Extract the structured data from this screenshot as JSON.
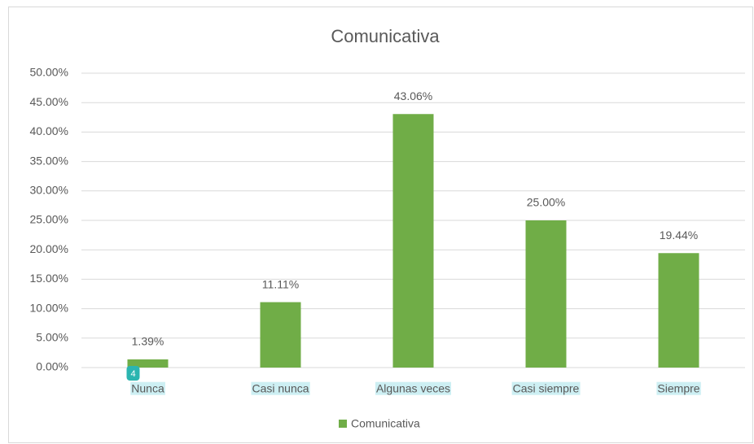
{
  "chart_data": {
    "type": "bar",
    "title": "Comunicativa",
    "categories": [
      "Nunca",
      "Casi nunca",
      "Algunas veces",
      "Casi siempre",
      "Siempre"
    ],
    "series": [
      {
        "name": "Comunicativa",
        "color": "#70ad47",
        "values": [
          1.39,
          11.11,
          43.06,
          25.0,
          19.44
        ],
        "value_labels": [
          "1.39%",
          "11.11%",
          "43.06%",
          "25.00%",
          "19.44%"
        ]
      }
    ],
    "ylim": [
      0,
      50
    ],
    "yticks": [
      {
        "value": 0,
        "label": "0.00%"
      },
      {
        "value": 5,
        "label": "5.00%"
      },
      {
        "value": 10,
        "label": "10.00%"
      },
      {
        "value": 15,
        "label": "15.00%"
      },
      {
        "value": 20,
        "label": "20.00%"
      },
      {
        "value": 25,
        "label": "25.00%"
      },
      {
        "value": 30,
        "label": "30.00%"
      },
      {
        "value": 35,
        "label": "35.00%"
      },
      {
        "value": 40,
        "label": "40.00%"
      },
      {
        "value": 45,
        "label": "45.00%"
      },
      {
        "value": 50,
        "label": "50.00%"
      }
    ],
    "grid": true,
    "legend": "bottom",
    "annotations": [
      "4"
    ]
  }
}
